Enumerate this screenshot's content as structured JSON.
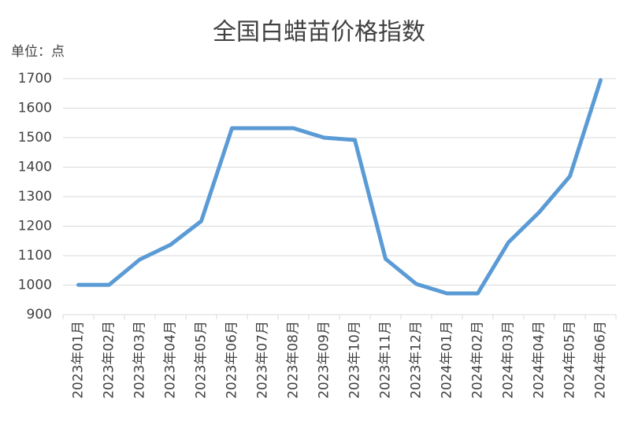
{
  "chart_data": {
    "type": "line",
    "title": "全国白蜡苗价格指数",
    "unit_label": "单位：点",
    "categories": [
      "2023年01月",
      "2023年02月",
      "2023年03月",
      "2023年04月",
      "2023年05月",
      "2023年06月",
      "2023年07月",
      "2023年08月",
      "2023年09月",
      "2023年10月",
      "2023年11月",
      "2023年12月",
      "2024年01月",
      "2024年02月",
      "2024年03月",
      "2024年04月",
      "2024年05月",
      "2024年06月"
    ],
    "values": [
      1001,
      1001,
      1087,
      1137,
      1217,
      1532,
      1532,
      1532,
      1500,
      1492,
      1089,
      1004,
      972,
      972,
      1145,
      1247,
      1369,
      1695
    ],
    "color": "#5b9bd5",
    "ylim": [
      900,
      1700
    ],
    "yticks": [
      900,
      1000,
      1100,
      1200,
      1300,
      1400,
      1500,
      1600,
      1700
    ],
    "grid": true
  }
}
